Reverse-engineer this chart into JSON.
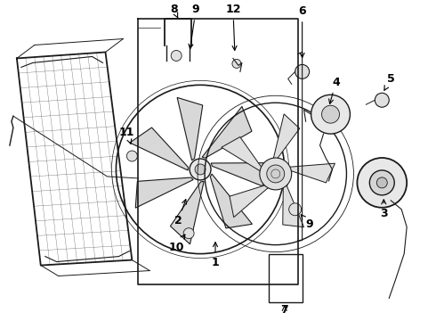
{
  "bg_color": "#ffffff",
  "line_color": "#1a1a1a",
  "label_color": "#000000",
  "figsize": [
    4.9,
    3.6
  ],
  "dpi": 100,
  "labels": {
    "1": [
      0.415,
      0.82,
      0.415,
      0.755
    ],
    "2": [
      0.27,
      0.58,
      0.295,
      0.52
    ],
    "3": [
      0.865,
      0.67,
      0.865,
      0.61
    ],
    "4": [
      0.72,
      0.36,
      0.71,
      0.42
    ],
    "5": [
      0.84,
      0.255,
      0.84,
      0.305
    ],
    "6": [
      0.635,
      0.165,
      0.635,
      0.225
    ],
    "7": [
      0.6,
      0.94,
      0.603,
      0.87
    ],
    "8": [
      0.375,
      0.055,
      0.375,
      0.145
    ],
    "9a": [
      0.365,
      0.19,
      0.365,
      0.245
    ],
    "9b": [
      0.665,
      0.665,
      0.665,
      0.615
    ],
    "10": [
      0.34,
      0.755,
      0.355,
      0.695
    ],
    "11": [
      0.185,
      0.415,
      0.185,
      0.47
    ],
    "12": [
      0.455,
      0.145,
      0.468,
      0.21
    ]
  }
}
